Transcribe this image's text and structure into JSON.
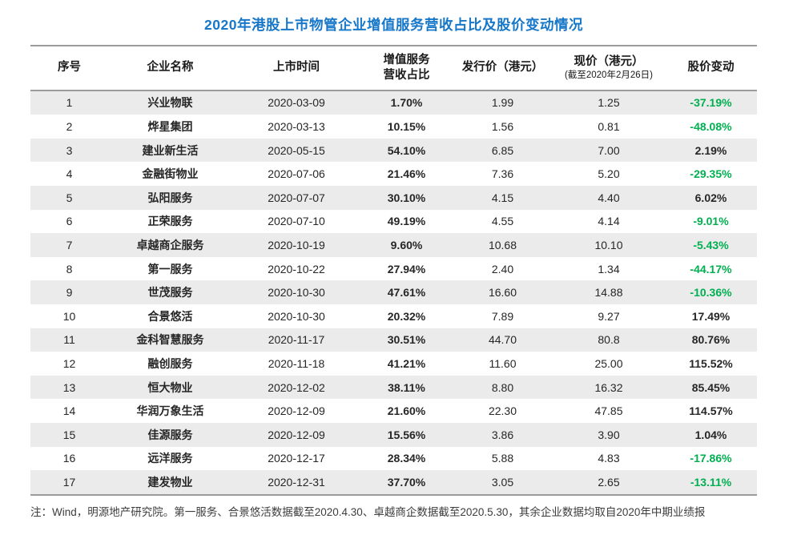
{
  "title": "2020年港股上市物管企业增值服务营收占比及股价变动情况",
  "colors": {
    "title_blue": "#1777c9",
    "negative_change_green": "#00b050",
    "row_stripe_gray": "#ebebeb",
    "border_gray": "#9b9b9b"
  },
  "header": {
    "no": "序号",
    "name": "企业名称",
    "date": "上市时间",
    "vas_line1": "增值服务",
    "vas_line2": "营收占比",
    "issue": "发行价（港元）",
    "current": "现价（港元）",
    "current_sub": "(截至2020年2月26日)",
    "change": "股价变动"
  },
  "chart_data": {
    "type": "table",
    "title": "2020年港股上市物管企业增值服务营收占比及股价变动情况",
    "columns": [
      "序号",
      "企业名称",
      "上市时间",
      "增值服务营收占比",
      "发行价（港元）",
      "现价（港元）(截至2020年2月26日)",
      "股价变动"
    ],
    "rows": [
      [
        "1",
        "兴业物联",
        "2020-03-09",
        "1.70%",
        "1.99",
        "1.25",
        "-37.19%"
      ],
      [
        "2",
        "烨星集团",
        "2020-03-13",
        "10.15%",
        "1.56",
        "0.81",
        "-48.08%"
      ],
      [
        "3",
        "建业新生活",
        "2020-05-15",
        "54.10%",
        "6.85",
        "7.00",
        "2.19%"
      ],
      [
        "4",
        "金融街物业",
        "2020-07-06",
        "21.46%",
        "7.36",
        "5.20",
        "-29.35%"
      ],
      [
        "5",
        "弘阳服务",
        "2020-07-07",
        "30.10%",
        "4.15",
        "4.40",
        "6.02%"
      ],
      [
        "6",
        "正荣服务",
        "2020-07-10",
        "49.19%",
        "4.55",
        "4.14",
        "-9.01%"
      ],
      [
        "7",
        "卓越商企服务",
        "2020-10-19",
        "9.60%",
        "10.68",
        "10.10",
        "-5.43%"
      ],
      [
        "8",
        "第一服务",
        "2020-10-22",
        "27.94%",
        "2.40",
        "1.34",
        "-44.17%"
      ],
      [
        "9",
        "世茂服务",
        "2020-10-30",
        "47.61%",
        "16.60",
        "14.88",
        "-10.36%"
      ],
      [
        "10",
        "合景悠活",
        "2020-10-30",
        "20.32%",
        "7.89",
        "9.27",
        "17.49%"
      ],
      [
        "11",
        "金科智慧服务",
        "2020-11-17",
        "30.51%",
        "44.70",
        "80.8",
        "80.76%"
      ],
      [
        "12",
        "融创服务",
        "2020-11-18",
        "41.21%",
        "11.60",
        "25.00",
        "115.52%"
      ],
      [
        "13",
        "恒大物业",
        "2020-12-02",
        "38.11%",
        "8.80",
        "16.32",
        "85.45%"
      ],
      [
        "14",
        "华润万象生活",
        "2020-12-09",
        "21.60%",
        "22.30",
        "47.85",
        "114.57%"
      ],
      [
        "15",
        "佳源服务",
        "2020-12-09",
        "15.56%",
        "3.86",
        "3.90",
        "1.04%"
      ],
      [
        "16",
        "远洋服务",
        "2020-12-17",
        "28.34%",
        "5.88",
        "4.83",
        "-17.86%"
      ],
      [
        "17",
        "建发物业",
        "2020-12-31",
        "37.70%",
        "3.05",
        "2.65",
        "-13.11%"
      ]
    ]
  },
  "note": "注：Wind，明源地产研究院。第一服务、合景悠活数据截至2020.4.30、卓越商企数据截至2020.5.30，其余企业数据均取自2020年中期业绩报"
}
